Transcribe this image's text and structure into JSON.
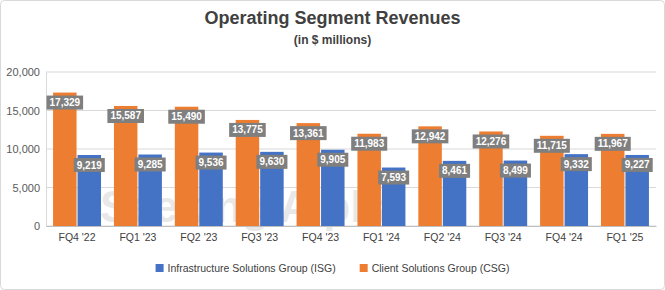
{
  "chart_data": {
    "type": "bar",
    "title": "Operating Segment Revenues",
    "subtitle": "(in $ millions)",
    "annotations": [
      "Seeking Alpha"
    ],
    "categories": [
      "FQ4 '22",
      "FQ1 '23",
      "FQ2 '23",
      "FQ3 '23",
      "FQ4 '23",
      "FQ1 '24",
      "FQ2 '24",
      "FQ3 '24",
      "FQ4 '24",
      "FQ1 '25"
    ],
    "series": [
      {
        "name": "Infrastructure Solutions Group (ISG)",
        "color": "#4472c4",
        "values": [
          9219,
          9285,
          9536,
          9630,
          9905,
          7593,
          8461,
          8499,
          9332,
          9227
        ],
        "value_labels": [
          "9,219",
          "9,285",
          "9,536",
          "9,630",
          "9,905",
          "7,593",
          "8,461",
          "8,499",
          "9,332",
          "9,227"
        ]
      },
      {
        "name": "Client Solutions Group (CSG)",
        "color": "#ed7d31",
        "values": [
          17329,
          15587,
          15490,
          13775,
          13361,
          11983,
          12942,
          12276,
          11715,
          11967
        ],
        "value_labels": [
          "17,329",
          "15,587",
          "15,490",
          "13,775",
          "13,361",
          "11,983",
          "12,942",
          "12,276",
          "11,715",
          "11,967"
        ]
      }
    ],
    "ylim": [
      0,
      20000
    ],
    "yticks": [
      0,
      {
        "value": 5000,
        "label": "5,000"
      },
      {
        "value": 10000,
        "label": "10,000"
      },
      {
        "value": 15000,
        "label": "15,000"
      },
      {
        "value": 20000,
        "label": "20,000"
      }
    ],
    "grid": true,
    "legend": "bottom",
    "data_labels": true
  }
}
